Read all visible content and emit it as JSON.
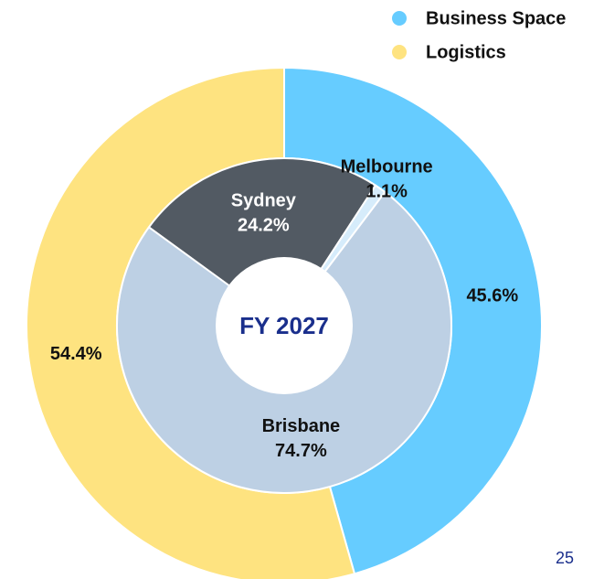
{
  "chart_data": {
    "type": "donut",
    "center_label": "FY 2027",
    "page_number": "25",
    "rings": [
      {
        "categories": [
          "Business Space",
          "Logistics"
        ],
        "values": [
          45.6,
          54.4
        ],
        "value_labels": [
          "45.6%",
          "54.4%"
        ],
        "colors": [
          "#66ccff",
          "#fee380"
        ]
      },
      {
        "categories": [
          "Sydney",
          "Melbourne",
          "Brisbane"
        ],
        "values": [
          24.2,
          1.1,
          74.7
        ],
        "value_labels": [
          "24.2%",
          "1.1%",
          "74.7%"
        ],
        "colors": [
          "#525a63",
          "#d6ecfb",
          "#bdd0e4"
        ]
      }
    ]
  }
}
